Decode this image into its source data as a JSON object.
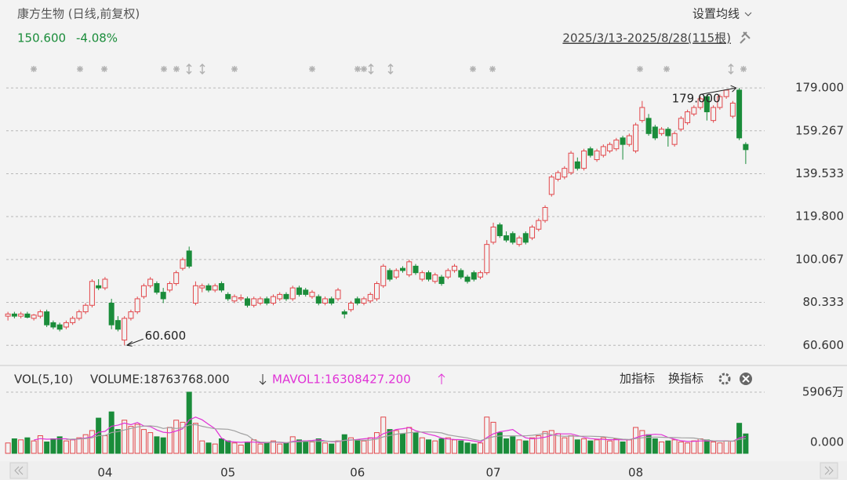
{
  "header": {
    "title": "康方生物 (日线,前复权)",
    "price": "150.600",
    "change": "-4.08%",
    "ma_button": "设置均线",
    "range": "2025/3/13-2025/8/28(115根)",
    "add_indicator": "加指标",
    "switch_indicator": "换指标"
  },
  "chart_data": [
    {
      "type": "candlestick",
      "up_color": "#e2474b",
      "down_color": "#1a8c3a",
      "grid": true,
      "ylim": [
        56,
        183
      ],
      "yticks": [
        {
          "value": 60.6,
          "label": "60.600"
        },
        {
          "value": 80.333,
          "label": "80.333"
        },
        {
          "value": 100.067,
          "label": "100.067"
        },
        {
          "value": 119.8,
          "label": "119.800"
        },
        {
          "value": 139.533,
          "label": "139.533"
        },
        {
          "value": 159.267,
          "label": "159.267"
        },
        {
          "value": 179,
          "label": "179.000"
        }
      ],
      "annotations": [
        {
          "label": "179.000",
          "value": 179
        },
        {
          "label": "60.600",
          "value": 60.6
        }
      ],
      "categories": [
        null,
        null,
        null,
        null,
        null,
        null,
        null,
        null,
        null,
        null,
        null,
        null,
        null,
        null,
        null,
        "04",
        null,
        null,
        null,
        null,
        null,
        null,
        null,
        null,
        null,
        null,
        null,
        null,
        null,
        null,
        null,
        null,
        null,
        null,
        "05",
        null,
        null,
        null,
        null,
        null,
        null,
        null,
        null,
        null,
        null,
        null,
        null,
        null,
        null,
        null,
        null,
        null,
        null,
        null,
        "06",
        null,
        null,
        null,
        null,
        null,
        null,
        null,
        null,
        null,
        null,
        null,
        null,
        null,
        null,
        null,
        null,
        null,
        null,
        null,
        null,
        "07",
        null,
        null,
        null,
        null,
        null,
        null,
        null,
        null,
        null,
        null,
        null,
        null,
        null,
        null,
        null,
        null,
        null,
        null,
        null,
        null,
        null,
        "08",
        null,
        null,
        null,
        null,
        null,
        null,
        null,
        null,
        null,
        null,
        null,
        null,
        null,
        null,
        null,
        null,
        null
      ],
      "candles": [
        [
          74,
          76,
          72,
          75
        ],
        [
          75,
          76,
          73,
          74
        ],
        [
          74,
          76,
          73,
          75
        ],
        [
          75,
          76,
          73,
          73.5
        ],
        [
          73,
          75,
          72,
          74.5
        ],
        [
          74,
          77,
          73,
          76
        ],
        [
          76,
          77,
          69,
          70
        ],
        [
          71,
          72,
          68,
          69
        ],
        [
          70,
          71,
          67,
          68
        ],
        [
          69,
          72,
          68,
          71
        ],
        [
          71,
          74,
          70,
          73
        ],
        [
          73,
          77,
          72,
          76
        ],
        [
          76,
          80,
          75,
          79
        ],
        [
          79,
          91,
          78,
          90
        ],
        [
          88,
          91,
          86,
          87
        ],
        [
          87,
          92,
          86,
          91
        ],
        [
          80,
          82,
          68,
          70
        ],
        [
          72,
          74,
          67,
          68
        ],
        [
          63,
          74,
          60.6,
          73
        ],
        [
          73,
          77,
          72,
          76
        ],
        [
          76,
          83,
          75,
          82
        ],
        [
          83,
          89,
          82,
          88
        ],
        [
          88,
          92,
          87,
          91
        ],
        [
          89,
          90,
          84,
          85
        ],
        [
          85,
          87,
          80,
          82
        ],
        [
          86,
          90,
          85,
          89
        ],
        [
          89,
          95,
          88,
          94
        ],
        [
          96,
          101,
          95,
          100
        ],
        [
          104,
          106,
          96,
          97
        ],
        [
          80,
          90,
          79,
          88
        ],
        [
          87,
          89,
          85,
          88
        ],
        [
          88,
          89,
          85,
          86
        ],
        [
          86,
          89,
          85,
          88
        ],
        [
          89,
          90,
          85,
          86
        ],
        [
          84,
          85,
          81,
          82
        ],
        [
          81,
          84,
          80,
          83
        ],
        [
          82,
          84,
          81,
          82.5
        ],
        [
          82,
          83,
          78,
          79
        ],
        [
          79,
          83,
          78,
          82
        ],
        [
          80,
          83,
          79,
          82
        ],
        [
          82,
          83,
          79,
          80
        ],
        [
          80,
          84,
          79,
          83
        ],
        [
          82,
          85,
          81,
          84
        ],
        [
          84,
          85,
          81,
          82
        ],
        [
          82,
          88,
          81,
          87
        ],
        [
          87,
          88,
          83,
          84
        ],
        [
          86,
          87,
          83,
          84
        ],
        [
          83,
          86,
          82,
          85
        ],
        [
          83,
          84,
          79,
          80
        ],
        [
          80,
          83,
          79,
          82
        ],
        [
          82,
          83,
          79,
          80
        ],
        [
          82,
          87,
          81,
          86
        ],
        [
          76,
          77,
          73,
          75
        ],
        [
          77,
          81,
          76,
          80
        ],
        [
          82,
          83,
          79,
          80
        ],
        [
          80,
          83,
          79,
          82
        ],
        [
          81,
          85,
          80,
          84
        ],
        [
          82,
          90,
          81,
          89
        ],
        [
          88,
          98,
          87,
          97
        ],
        [
          95,
          96,
          90,
          91
        ],
        [
          92,
          96,
          91,
          95
        ],
        [
          96,
          97,
          94,
          95
        ],
        [
          93,
          100,
          92,
          99
        ],
        [
          97,
          98,
          93,
          94
        ],
        [
          91,
          95,
          90,
          94
        ],
        [
          94,
          95,
          90,
          91
        ],
        [
          90,
          94,
          89,
          93
        ],
        [
          92,
          93,
          88,
          89
        ],
        [
          92,
          96,
          91,
          95
        ],
        [
          95,
          98,
          94,
          97
        ],
        [
          95,
          96,
          91,
          92
        ],
        [
          92,
          93,
          89,
          90
        ],
        [
          94,
          95,
          90,
          91
        ],
        [
          92,
          95,
          91,
          94
        ],
        [
          94,
          109,
          93,
          107
        ],
        [
          108,
          117,
          107,
          115
        ],
        [
          116,
          117,
          110,
          111
        ],
        [
          111,
          113,
          108,
          109
        ],
        [
          112,
          113,
          107,
          108
        ],
        [
          107,
          111,
          106,
          110
        ],
        [
          112,
          113,
          107,
          108
        ],
        [
          110,
          116,
          109,
          115
        ],
        [
          114,
          119,
          113,
          118
        ],
        [
          118,
          125,
          117,
          124
        ],
        [
          130,
          139,
          129,
          138
        ],
        [
          137,
          141,
          136,
          140
        ],
        [
          138,
          143,
          137,
          142
        ],
        [
          140,
          150,
          139,
          149
        ],
        [
          145,
          147,
          141,
          142
        ],
        [
          142,
          151,
          141,
          150
        ],
        [
          151,
          152,
          147,
          148
        ],
        [
          146,
          151,
          145,
          150
        ],
        [
          148,
          153,
          147,
          152
        ],
        [
          150,
          154,
          149,
          153
        ],
        [
          151,
          156,
          150,
          155
        ],
        [
          156,
          157,
          146,
          153
        ],
        [
          153,
          158,
          152,
          157
        ],
        [
          150,
          163,
          149,
          162
        ],
        [
          164,
          173,
          163,
          170
        ],
        [
          165,
          167,
          157,
          158
        ],
        [
          161,
          162,
          155,
          156
        ],
        [
          158,
          161,
          157,
          160
        ],
        [
          160,
          161,
          152,
          157
        ],
        [
          153,
          159,
          152,
          158
        ],
        [
          160,
          166,
          159,
          165
        ],
        [
          163,
          169,
          162,
          168
        ],
        [
          167,
          171,
          166,
          170
        ],
        [
          170,
          175,
          169,
          174
        ],
        [
          175,
          176,
          164,
          168
        ],
        [
          164,
          171,
          163,
          170
        ],
        [
          170,
          176,
          169,
          175
        ],
        [
          175,
          178,
          174,
          178
        ],
        [
          166,
          173,
          165,
          172
        ],
        [
          178,
          179,
          155,
          156
        ],
        [
          153,
          154,
          144,
          150.6
        ]
      ]
    },
    {
      "type": "volume",
      "grid": true,
      "legend": {
        "indicator": "VOL(5,10)",
        "volume": "VOLUME:18763768.000",
        "mavol1": "MAVOL1:16308427.200"
      },
      "ylim": [
        0,
        5906
      ],
      "yticks": [
        {
          "value": 5906,
          "label": "5906万"
        },
        {
          "value": 0,
          "label": "0.000"
        }
      ],
      "values": [
        1000,
        1400,
        1300,
        1500,
        1200,
        1700,
        1100,
        1400,
        1600,
        1200,
        1300,
        1500,
        1800,
        2200,
        3400,
        1700,
        4000,
        2300,
        3200,
        2600,
        2800,
        2300,
        2000,
        1600,
        1500,
        2500,
        3200,
        3000,
        5906,
        2900,
        1200,
        1000,
        900,
        1400,
        1200,
        1000,
        800,
        1100,
        1300,
        900,
        1000,
        1200,
        900,
        1000,
        1600,
        1300,
        1200,
        1100,
        1400,
        1000,
        900,
        1200,
        1800,
        1500,
        1300,
        1200,
        1500,
        2000,
        3500,
        2300,
        2200,
        1900,
        2500,
        2000,
        1500,
        1300,
        1200,
        1400,
        1500,
        1300,
        1200,
        1000,
        900,
        1000,
        3500,
        3000,
        2000,
        1400,
        1600,
        1300,
        1200,
        1500,
        1700,
        2100,
        2200,
        1900,
        1500,
        1700,
        1300,
        1400,
        1200,
        1300,
        1500,
        1200,
        1400,
        1100,
        1300,
        2500,
        2200,
        1800,
        1400,
        1100,
        1200,
        1300,
        1100,
        1000,
        1200,
        1400,
        1300,
        1100,
        1000,
        1200,
        1180,
        2900,
        1876.3768
      ],
      "series": [
        {
          "name": "MAVOL1",
          "color": "#e033d6",
          "values": [
            null,
            null,
            null,
            null,
            1280,
            1420,
            1360,
            1380,
            1400,
            1400,
            1320,
            1400,
            1480,
            1600,
            2040,
            2120,
            2620,
            2720,
            2920,
            2760,
            2980,
            2640,
            2580,
            2260,
            2040,
            1980,
            2160,
            2360,
            3221,
            3501,
            3241,
            2801,
            2381,
            1480,
            1140,
            1100,
            1060,
            1100,
            1080,
            1020,
            1020,
            1100,
            1060,
            1000,
            1140,
            1200,
            1200,
            1240,
            1320,
            1200,
            1120,
            1120,
            1260,
            1280,
            1340,
            1400,
            1460,
            1500,
            1900,
            2100,
            2300,
            2380,
            2480,
            2180,
            2020,
            1840,
            1700,
            1480,
            1380,
            1340,
            1320,
            1280,
            1180,
            1080,
            1520,
            1880,
            2080,
            2180,
            2300,
            1860,
            1500,
            1400,
            1460,
            1560,
            1740,
            1880,
            1880,
            1880,
            1720,
            1560,
            1420,
            1380,
            1340,
            1320,
            1320,
            1300,
            1300,
            1500,
            1700,
            1780,
            1840,
            1800,
            1540,
            1360,
            1220,
            1140,
            1160,
            1200,
            1200,
            1200,
            1200,
            1200,
            1156,
            1476,
            1630.84
          ]
        },
        {
          "color": "#a0a0a0",
          "values": [
            null,
            null,
            null,
            null,
            null,
            null,
            null,
            null,
            null,
            1340,
            1370,
            1380,
            1430,
            1500,
            1720,
            1720,
            2010,
            2100,
            2260,
            2400,
            2550,
            2630,
            2650,
            2590,
            2400,
            2480,
            2400,
            2470,
            2741,
            2771,
            2611,
            2481,
            2371,
            2351,
            2321,
            2171,
            1931,
            1741,
            1280,
            1080,
            1060,
            1080,
            1080,
            1040,
            1080,
            1110,
            1150,
            1150,
            1160,
            1170,
            1160,
            1160,
            1250,
            1300,
            1270,
            1260,
            1290,
            1380,
            1590,
            1720,
            1850,
            1920,
            1990,
            2040,
            2060,
            2070,
            2040,
            1980,
            1780,
            1680,
            1580,
            1490,
            1330,
            1230,
            1430,
            1600,
            1680,
            1680,
            1690,
            1690,
            1690,
            1740,
            1820,
            1930,
            1800,
            1690,
            1640,
            1670,
            1640,
            1650,
            1650,
            1630,
            1610,
            1520,
            1440,
            1360,
            1340,
            1420,
            1510,
            1550,
            1570,
            1550,
            1520,
            1530,
            1500,
            1490,
            1480,
            1370,
            1280,
            1210,
            1170,
            1180,
            1178,
            1338,
            1416
          ]
        }
      ]
    }
  ]
}
